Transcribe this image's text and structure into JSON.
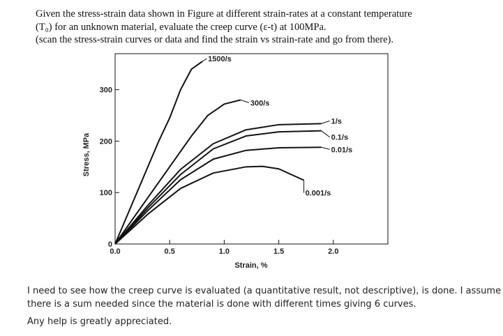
{
  "question": {
    "lines": [
      "Given the stress-strain data shown in Figure at different strain-rates at a constant temperature",
      "(T₀) for an unknown material, evaluate the creep curve (ε-t) at 100MPa.",
      "(scan the stress-strain curves or data and find the strain vs strain-rate and go from there)."
    ]
  },
  "chart_data": {
    "type": "line",
    "x_label": "Strain, %",
    "y_label": "Stress, MPa",
    "xlim": [
      0,
      2.5
    ],
    "ylim": [
      0,
      370
    ],
    "xticks": [
      {
        "value": 0,
        "label": "0.0"
      },
      {
        "value": 0.5,
        "label": "0.5"
      },
      {
        "value": 1,
        "label": "1.0"
      },
      {
        "value": 1.5,
        "label": "1.5"
      },
      {
        "value": 2,
        "label": "2.0"
      }
    ],
    "yticks": [
      0,
      100,
      200,
      300
    ],
    "series": [
      {
        "name": "1500/s",
        "color": "#111111",
        "x": [
          0,
          0.2,
          0.4,
          0.5,
          0.6,
          0.7,
          0.8
        ],
        "values": [
          0,
          100,
          200,
          245,
          300,
          340,
          355
        ]
      },
      {
        "name": "300/s",
        "color": "#111111",
        "x": [
          0,
          0.3,
          0.5,
          0.7,
          0.85,
          1.0,
          1.15
        ],
        "values": [
          0,
          90,
          150,
          210,
          250,
          272,
          280
        ]
      },
      {
        "name": "1/s",
        "color": "#111111",
        "x": [
          0,
          0.3,
          0.6,
          0.9,
          1.2,
          1.5,
          1.89
        ],
        "values": [
          0,
          75,
          145,
          195,
          222,
          232,
          234
        ]
      },
      {
        "name": "0.1/s",
        "color": "#111111",
        "x": [
          0,
          0.3,
          0.6,
          0.9,
          1.2,
          1.5,
          1.89
        ],
        "values": [
          0,
          70,
          135,
          185,
          210,
          218,
          220
        ]
      },
      {
        "name": "0.01/s",
        "color": "#111111",
        "x": [
          0,
          0.3,
          0.6,
          0.9,
          1.2,
          1.5,
          1.89
        ],
        "values": [
          0,
          65,
          125,
          165,
          182,
          187,
          188
        ]
      },
      {
        "name": "0.001/s",
        "color": "#111111",
        "x": [
          0,
          0.3,
          0.6,
          0.9,
          1.2,
          1.35,
          1.5,
          1.73
        ],
        "values": [
          0,
          58,
          108,
          138,
          150,
          151,
          146,
          124
        ]
      }
    ]
  },
  "footer": {
    "paragraphs": [
      [
        "I need to see how the creep curve is evaluated (a quantitative result, not descriptive), is done. I assume",
        "there is a sum needed since the material is done with different times giving 6 curves."
      ],
      [
        "Any help is greatly appreciated."
      ]
    ]
  }
}
